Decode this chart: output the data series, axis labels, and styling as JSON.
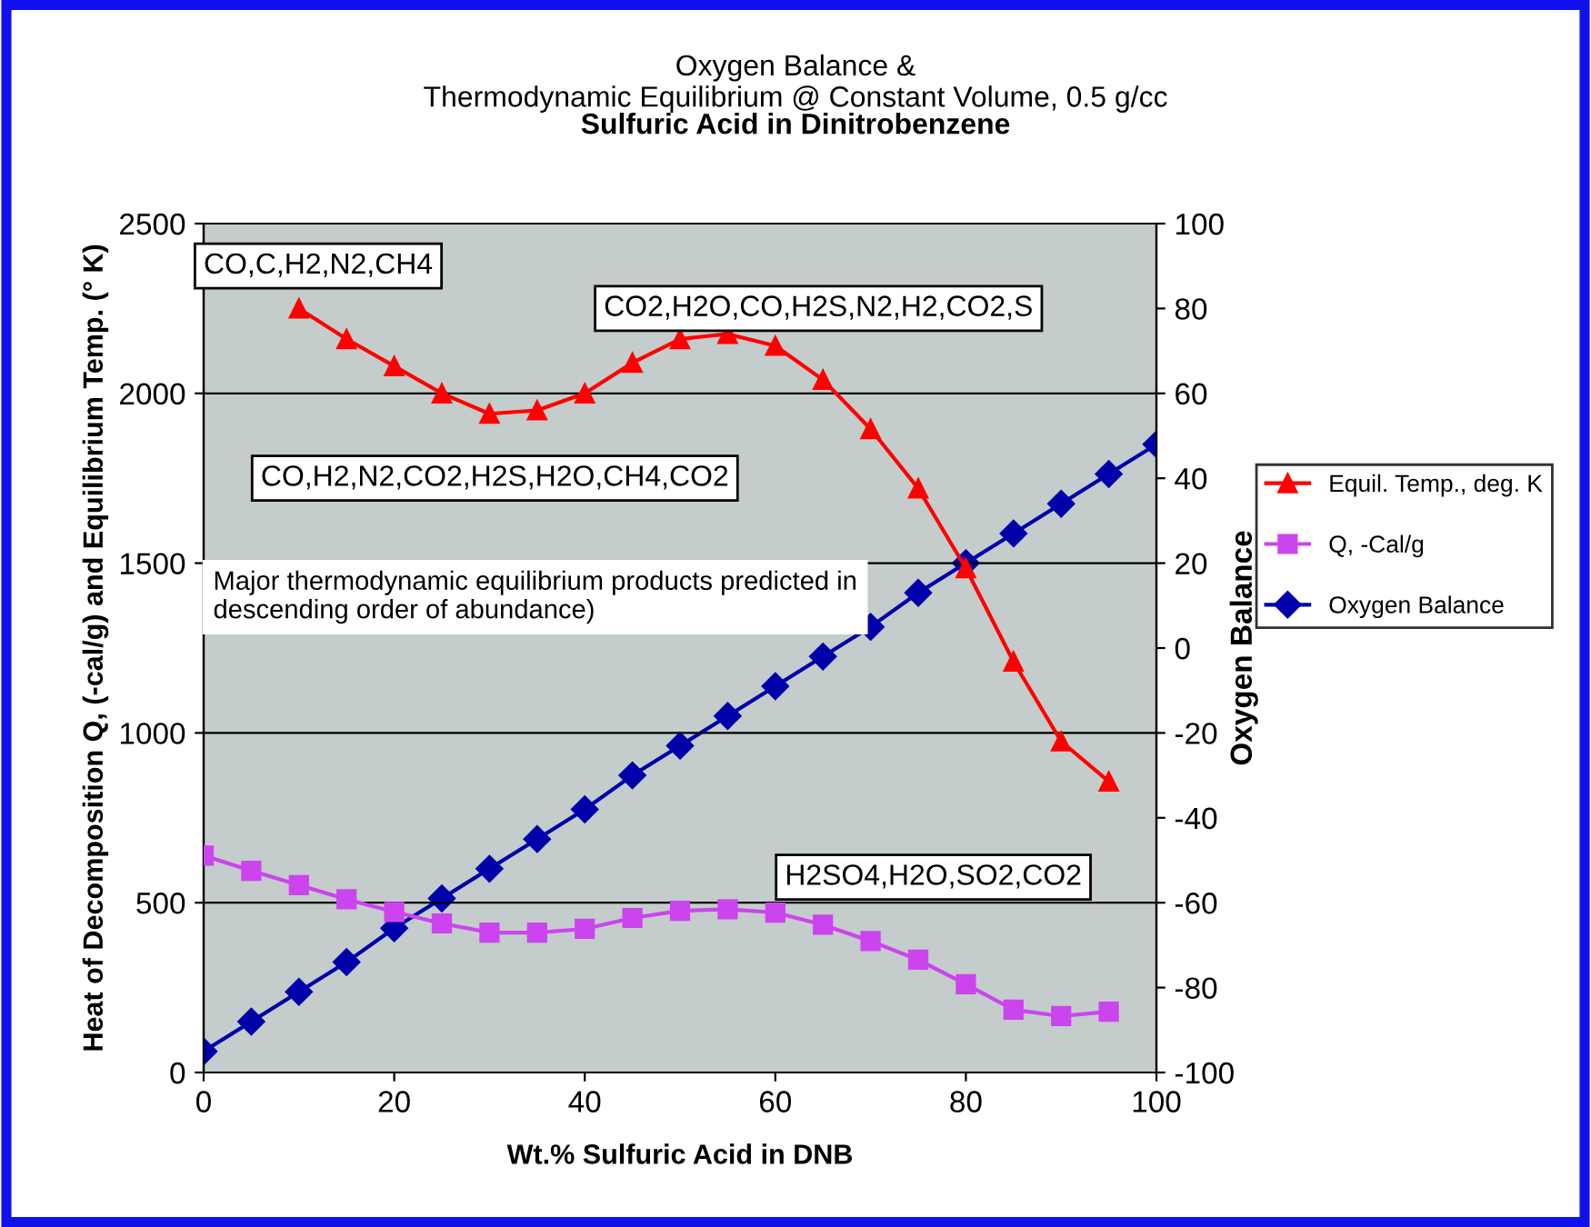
{
  "chart_data": {
    "type": "line",
    "title": "Oxygen Balance &\nThermodynamic Equilibrium @ Constant Volume, 0.5 g/cc",
    "subtitle": "Sulfuric Acid in Dinitrobenzene",
    "xlabel": "Wt.% Sulfuric Acid in DNB",
    "ylabel": "Heat of Decomposition Q, (-cal/g) and Equilibrium Temp. (° K)",
    "y2label": "Oxygen Balance",
    "x": [
      0,
      5,
      10,
      15,
      20,
      25,
      30,
      35,
      40,
      45,
      50,
      55,
      60,
      65,
      70,
      75,
      80,
      85,
      90,
      95
    ],
    "series": [
      {
        "name": "Equil. Temp., deg. K",
        "color": "#ff0000",
        "marker": "triangle",
        "values": [
          null,
          null,
          2250,
          2160,
          2080,
          2000,
          1940,
          1950,
          2000,
          2090,
          2160,
          2175,
          2140,
          2040,
          1895,
          1720,
          1485,
          1210,
          975,
          857
        ]
      },
      {
        "name": "Q, -Cal/g",
        "color": "#cc44ee",
        "marker": "square",
        "values": [
          639,
          594,
          552,
          510,
          473,
          439,
          412,
          412,
          423,
          455,
          476,
          481,
          471,
          435,
          387,
          332,
          260,
          185,
          166,
          179
        ]
      },
      {
        "name": "Oxygen Balance",
        "color": "#0000aa",
        "marker": "diamond",
        "axis": "y2",
        "x": [
          0,
          5,
          10,
          15,
          20,
          25,
          30,
          35,
          40,
          45,
          50,
          55,
          60,
          65,
          70,
          75,
          80,
          85,
          90,
          95,
          100
        ],
        "values": [
          -95,
          -88,
          -81,
          -74,
          -66,
          -59,
          -52,
          -45,
          -38,
          -30,
          -23,
          -16,
          -9,
          -2,
          5,
          13,
          20,
          27,
          34,
          41,
          48
        ]
      }
    ],
    "annotations": [
      "CO,C,H2,N2,CH4",
      "CO2,H2O,CO,H2S,N2,H2,CO2,S",
      "CO,H2,N2,CO2,H2S,H2O,CH4,CO2",
      "Major thermodynamic equilibrium products predicted in descending order of abundance)",
      "H2SO4,H2O,SO2,CO2"
    ],
    "xlim": [
      0,
      100
    ],
    "xticks": [
      0,
      20,
      40,
      60,
      80,
      100
    ],
    "ylim": [
      0,
      2500
    ],
    "yticks": [
      0,
      500,
      1000,
      1500,
      2000,
      2500
    ],
    "y2lim": [
      -100,
      100
    ],
    "y2ticks": [
      -100,
      -80,
      -60,
      -40,
      -20,
      0,
      20,
      40,
      60,
      80,
      100
    ],
    "grid": "y",
    "legend": "right",
    "line_style": "solid"
  }
}
